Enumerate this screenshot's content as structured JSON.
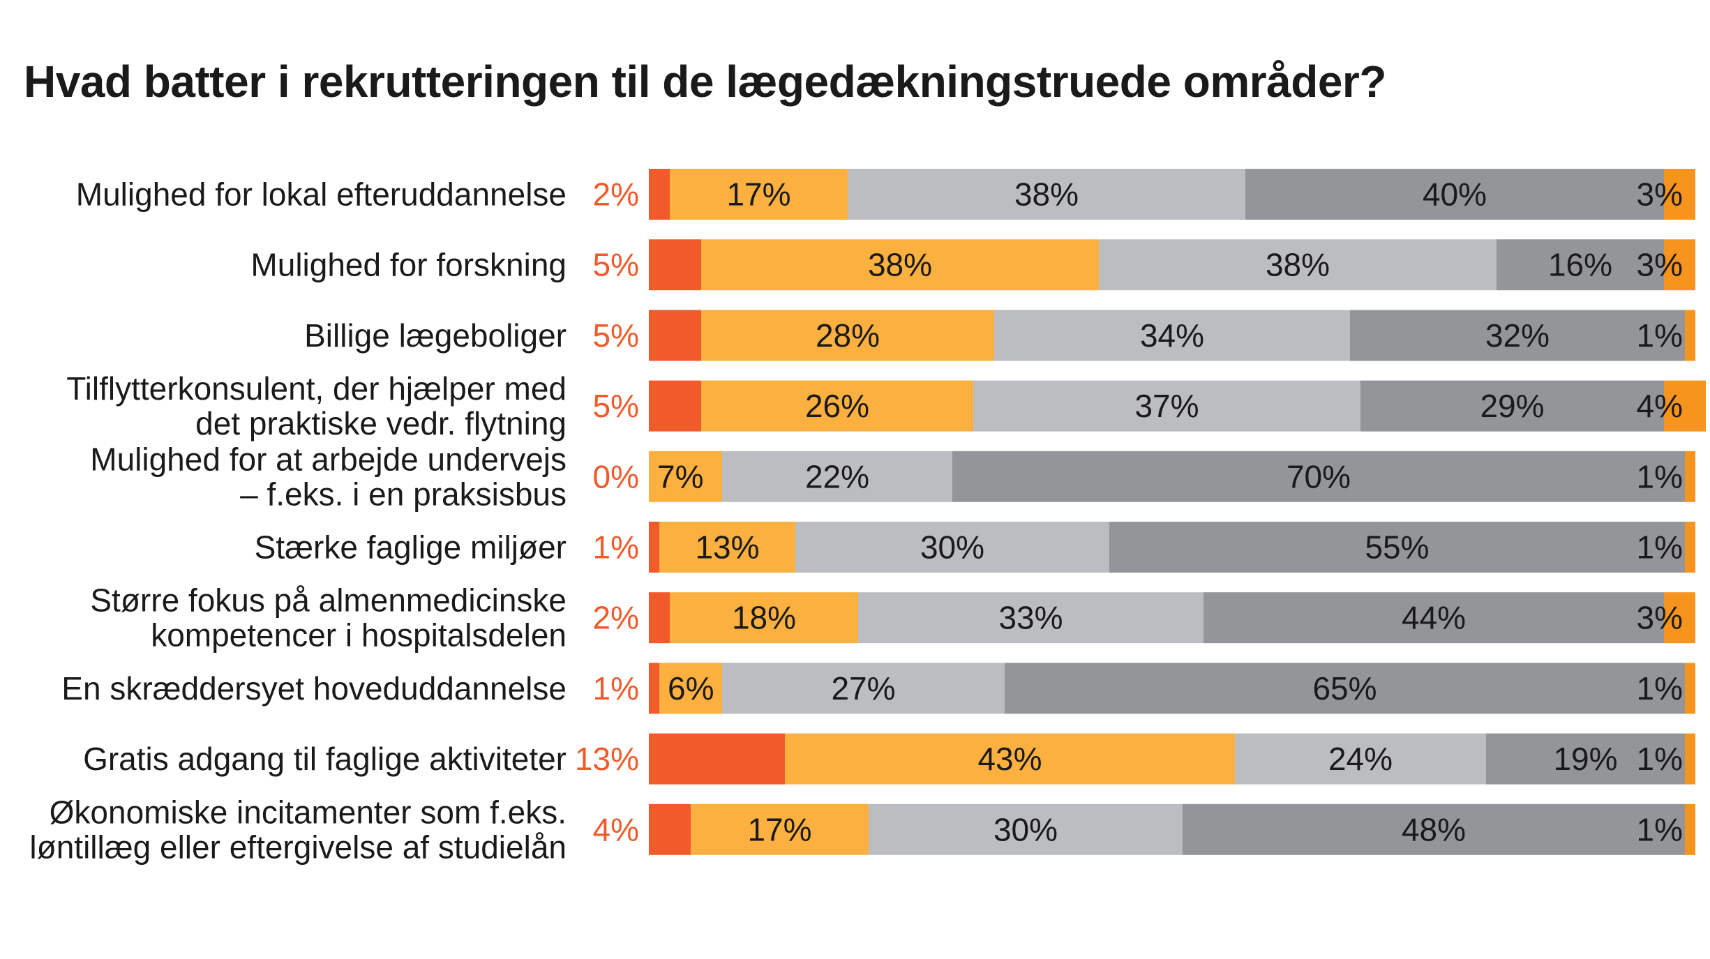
{
  "title": "Hvad batter i rekrutteringen til de lægedækningstruede områder?",
  "chart_data": {
    "type": "bar",
    "stacked": true,
    "orientation": "horizontal",
    "title": "Hvad batter i rekrutteringen til de lægedækningstruede områder?",
    "xlim": [
      0,
      100
    ],
    "unit": "%",
    "grid": false,
    "legend": "none",
    "colors": [
      "#f15a2b",
      "#fbb040",
      "#bcbdc0",
      "#939598",
      "#f7941d"
    ],
    "categories": [
      [
        "Mulighed for lokal efteruddannelse"
      ],
      [
        "Mulighed for forskning"
      ],
      [
        "Billige lægeboliger"
      ],
      [
        "Tilflytterkonsulent, der hjælper med",
        "det praktiske vedr. flytning"
      ],
      [
        "Mulighed for at arbejde undervejs",
        "– f.eks. i en praksisbus"
      ],
      [
        "Stærke faglige miljøer"
      ],
      [
        "Større fokus på almenmedicinske",
        "kompetencer i hospitalsdelen"
      ],
      [
        "En skræddersyet hoveduddannelse"
      ],
      [
        "Gratis adgang til faglige aktiviteter"
      ],
      [
        "Økonomiske incitamenter som f.eks.",
        "løntillæg eller eftergivelse af studielån"
      ]
    ],
    "values": [
      [
        2,
        17,
        38,
        40,
        3
      ],
      [
        5,
        38,
        38,
        16,
        3
      ],
      [
        5,
        28,
        34,
        32,
        1
      ],
      [
        5,
        26,
        37,
        29,
        4
      ],
      [
        0,
        7,
        22,
        70,
        1
      ],
      [
        1,
        13,
        30,
        55,
        1
      ],
      [
        2,
        18,
        33,
        44,
        3
      ],
      [
        1,
        6,
        27,
        65,
        1
      ],
      [
        13,
        43,
        24,
        19,
        1
      ],
      [
        4,
        17,
        30,
        48,
        1
      ]
    ]
  }
}
